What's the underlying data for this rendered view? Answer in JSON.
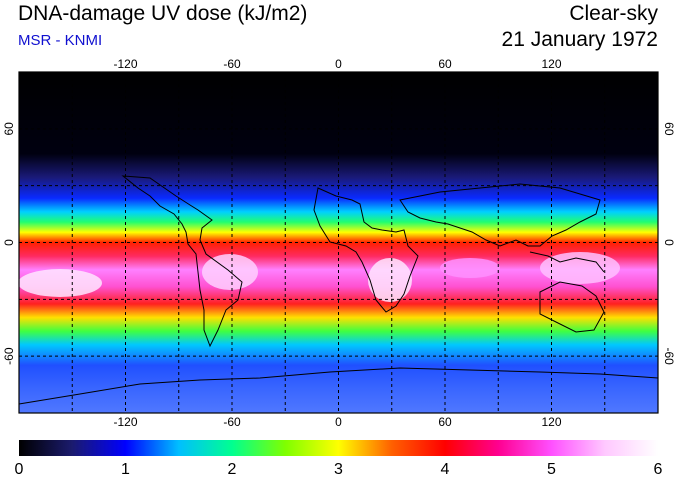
{
  "header": {
    "title": "DNA-damage UV dose (kJ/m2)",
    "credit": "MSR - KNMI",
    "sky_condition": "Clear-sky",
    "date": "21 January 1972"
  },
  "map": {
    "lon_ticks": [
      "-120",
      "-60",
      "0",
      "60",
      "120"
    ],
    "lat_ticks": [
      "60",
      "0",
      "-60"
    ],
    "lon_values": [
      -120,
      -60,
      0,
      60,
      120
    ],
    "lat_values": [
      60,
      0,
      -60
    ],
    "lon_range": [
      -180,
      180
    ],
    "lat_range": [
      -90,
      90
    ],
    "grid": "dashed every 30 degrees"
  },
  "colorbar": {
    "labels": [
      "0",
      "1",
      "2",
      "3",
      "4",
      "5",
      "6"
    ],
    "range": [
      0,
      6
    ],
    "colors": [
      "#000000",
      "#1b1b6e",
      "#0000ff",
      "#00bfff",
      "#00ff90",
      "#7fff00",
      "#ffff00",
      "#ff6000",
      "#ff0000",
      "#ff0090",
      "#ff50ff",
      "#ffc8ff",
      "#ffffff"
    ]
  }
}
